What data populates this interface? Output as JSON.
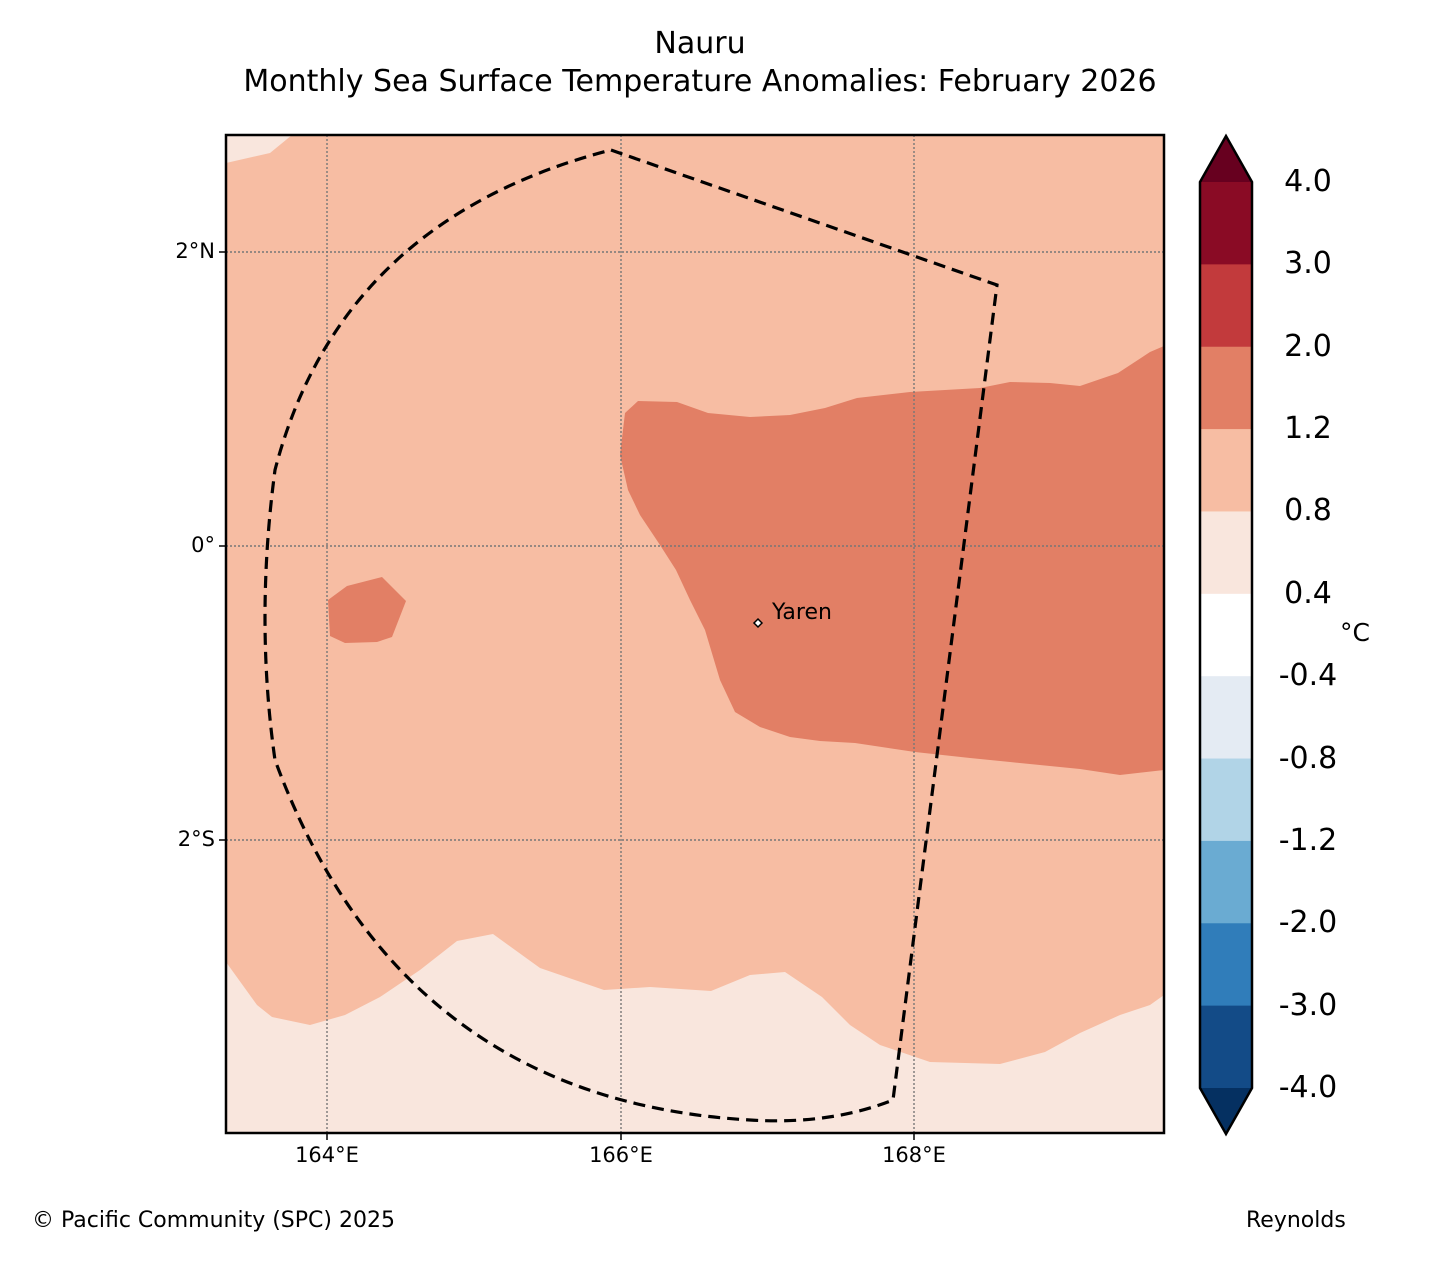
{
  "title": "Nauru",
  "subtitle": "Monthly Sea Surface Temperature Anomalies: February 2026",
  "map": {
    "place_label": "Yaren",
    "lat_labels": [
      "2°N",
      "0°",
      "2°S"
    ],
    "lon_labels": [
      "164°E",
      "166°E",
      "168°E"
    ],
    "colors": {
      "band_0_4_to_0_8": "#f9e6dd",
      "band_0_8_to_1_2": "#f7bda3",
      "band_1_2_to_2_0": "#e27f65"
    }
  },
  "colorbar": {
    "unit": "°C",
    "tick_labels": [
      "4.0",
      "3.0",
      "2.0",
      "1.2",
      "0.8",
      "0.4",
      "-0.4",
      "-0.8",
      "-1.2",
      "-2.0",
      "-3.0",
      "-4.0"
    ],
    "colors": [
      "#67001f",
      "#8a0b25",
      "#c23a3c",
      "#e27f65",
      "#f7bda3",
      "#f9e6dd",
      "#ffffff",
      "#e4ebf3",
      "#b1d4e7",
      "#6aabd2",
      "#307dba",
      "#134b87",
      "#053061"
    ]
  },
  "footer": {
    "copyright": "© Pacific Community (SPC) 2025",
    "source": "Reynolds"
  }
}
